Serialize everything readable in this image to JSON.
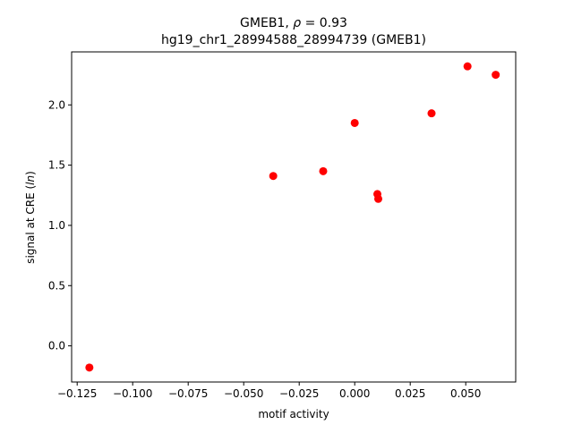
{
  "chart_data": {
    "type": "scatter",
    "title_line1_prefix": "GMEB1, ",
    "title_line1_rho": "ρ",
    "title_line1_suffix": " = 0.93",
    "title_line2": "hg19_chr1_28994588_28994739 (GMEB1)",
    "xlabel": "motif activity",
    "ylabel_prefix": "signal at CRE (",
    "ylabel_italic": "ln",
    "ylabel_suffix": ")",
    "xlim": [
      -0.1275,
      0.0725
    ],
    "ylim": [
      -0.3,
      2.44
    ],
    "xticks": [
      -0.125,
      -0.1,
      -0.075,
      -0.05,
      -0.025,
      0.0,
      0.025,
      0.05
    ],
    "xtick_labels": [
      "−0.125",
      "−0.100",
      "−0.075",
      "−0.050",
      "−0.025",
      "0.000",
      "0.025",
      "0.050"
    ],
    "yticks": [
      0.0,
      0.5,
      1.0,
      1.5,
      2.0
    ],
    "ytick_labels": [
      "0.0",
      "0.5",
      "1.0",
      "1.5",
      "2.0"
    ],
    "grid": false,
    "marker_color": "#ff0000",
    "points": [
      {
        "x": -0.1195,
        "y": -0.18
      },
      {
        "x": -0.0367,
        "y": 1.41
      },
      {
        "x": -0.0142,
        "y": 1.45
      },
      {
        "x": 0.0,
        "y": 1.85
      },
      {
        "x": 0.0102,
        "y": 1.26
      },
      {
        "x": 0.0106,
        "y": 1.22
      },
      {
        "x": 0.0346,
        "y": 1.93
      },
      {
        "x": 0.0508,
        "y": 2.32
      },
      {
        "x": 0.0635,
        "y": 2.25
      }
    ]
  }
}
